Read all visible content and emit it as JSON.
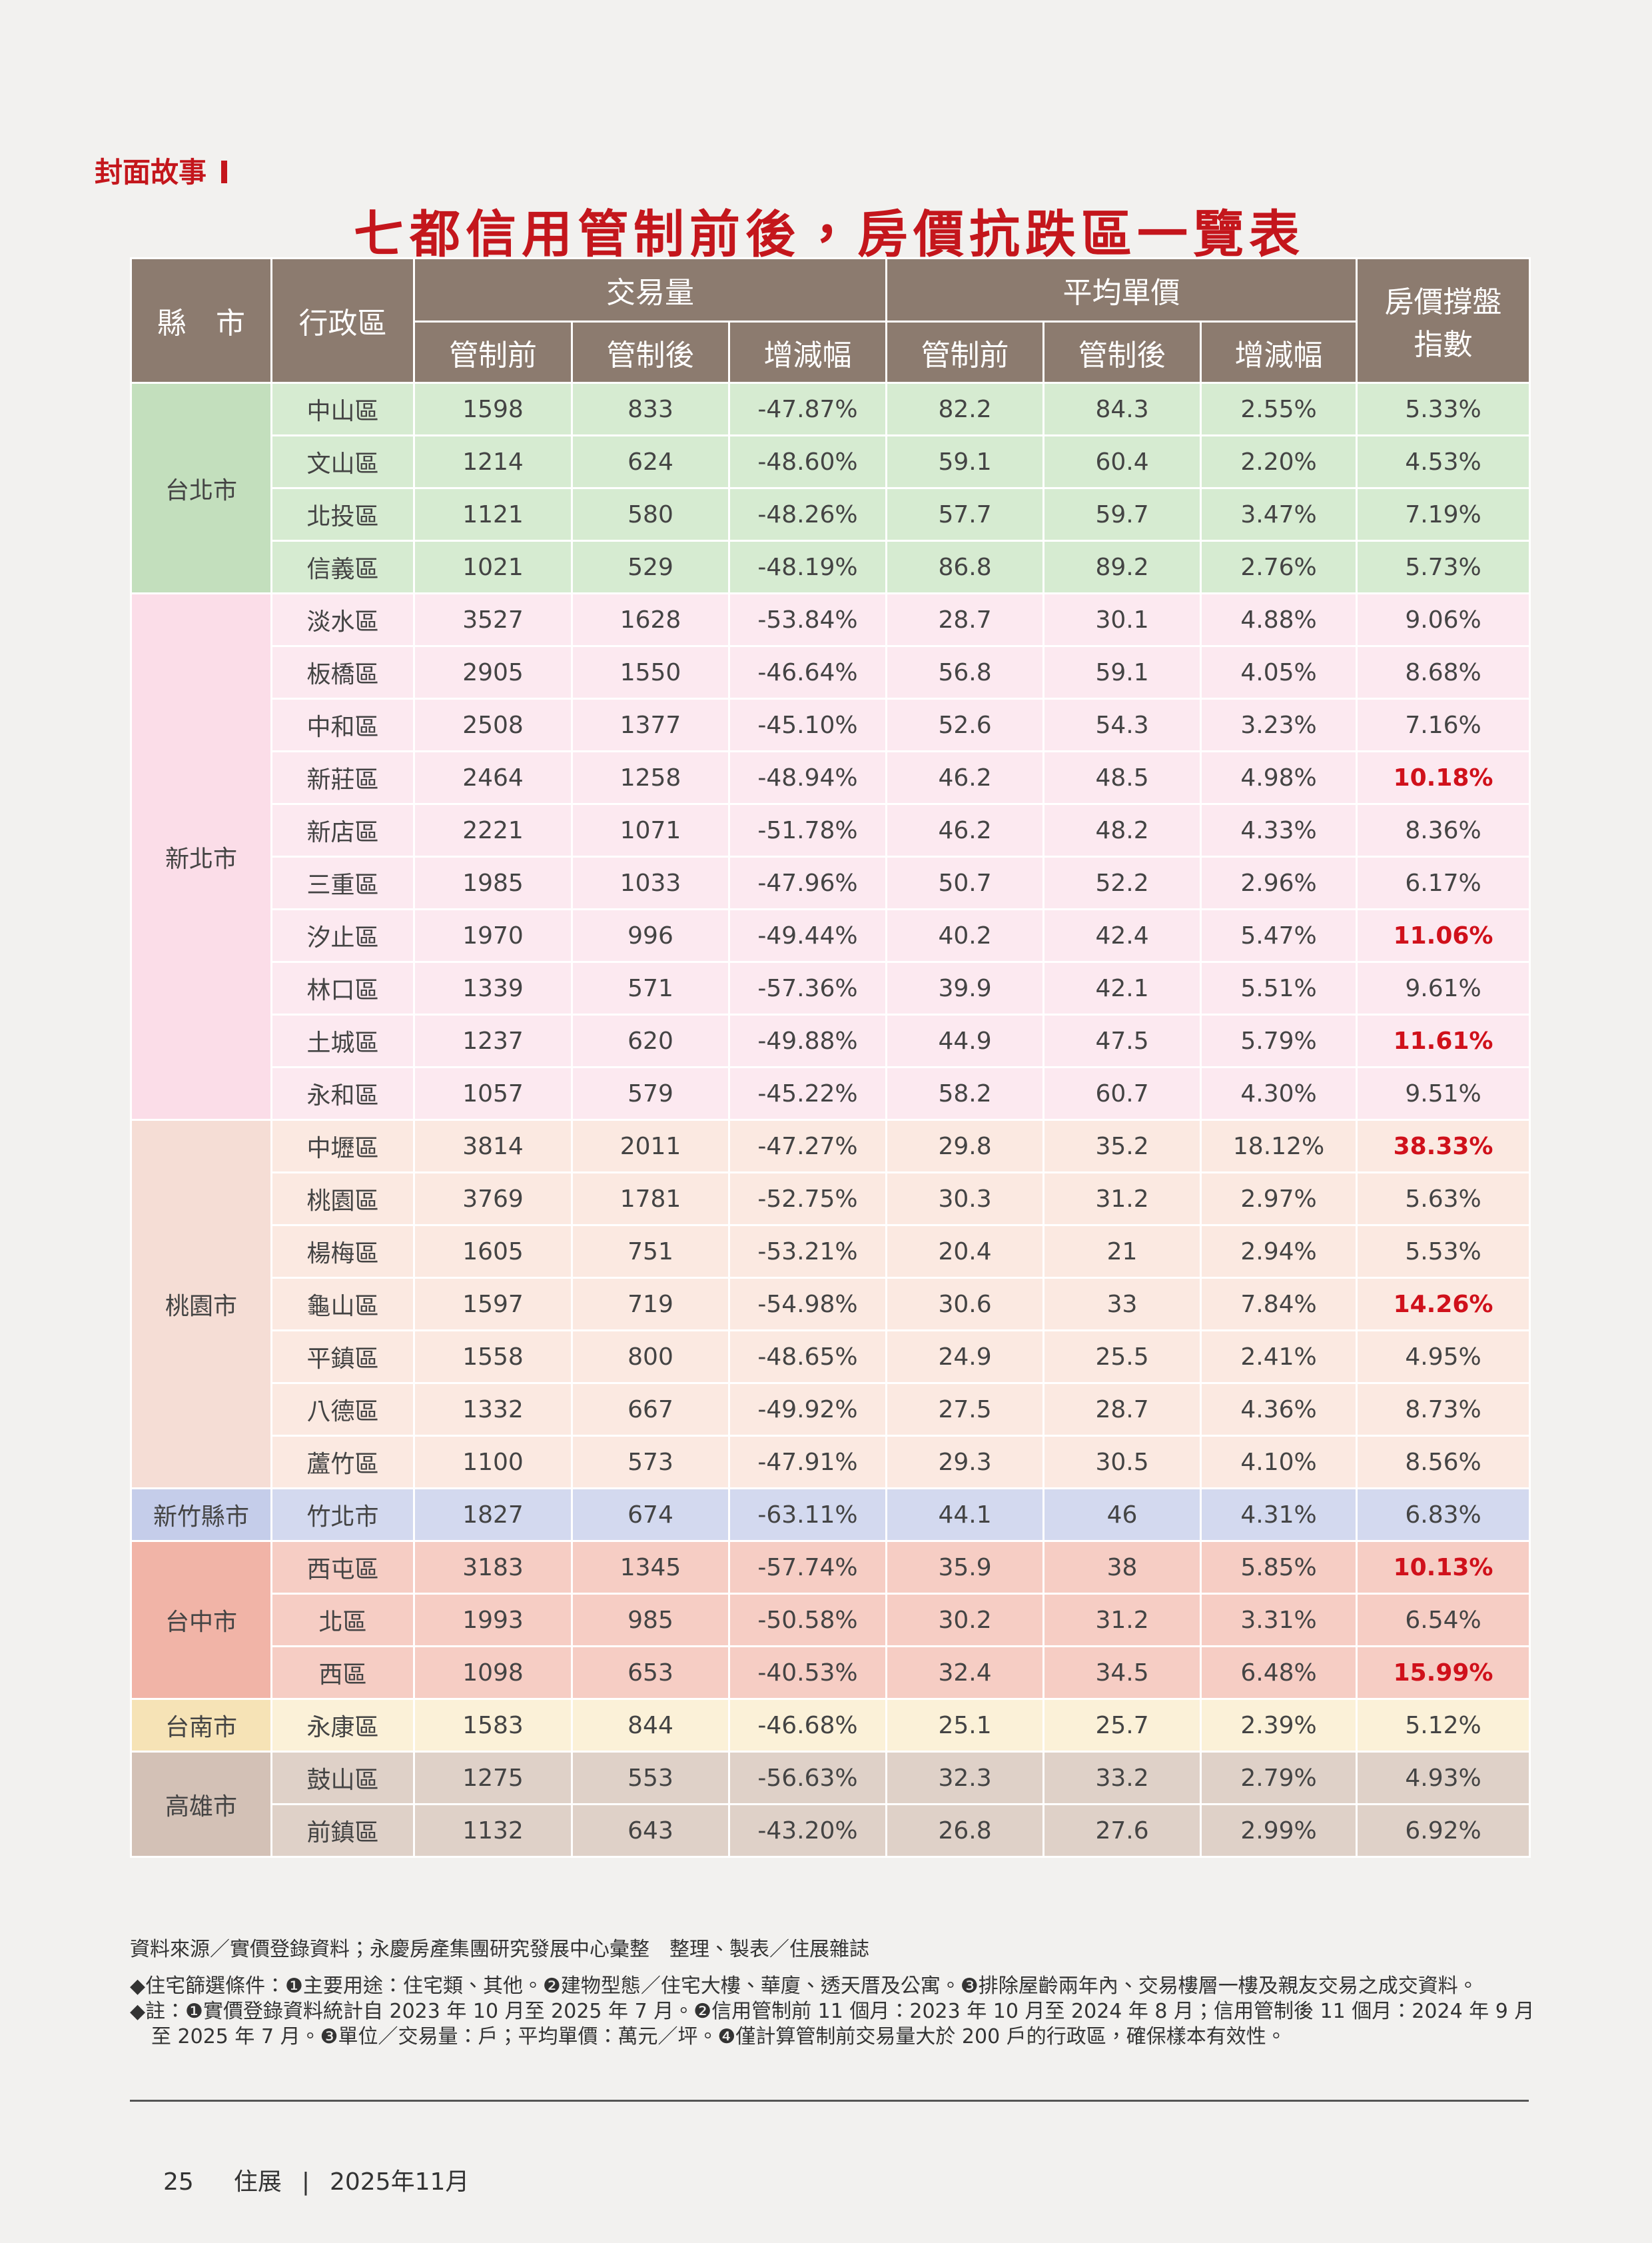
{
  "header": {
    "section": "封面故事",
    "title": "七都信用管制前後，房價抗跌區一覽表"
  },
  "table": {
    "columns": {
      "city": "縣　市",
      "district": "行政區",
      "volume": "交易量",
      "price": "平均單價",
      "index": "房價撐盤指數",
      "sub": [
        "管制前",
        "管制後",
        "增減幅",
        "管制前",
        "管制後",
        "增減幅"
      ]
    },
    "header_color": "#8c7b6f",
    "highlight_color": "#d0111b",
    "groups": [
      {
        "city": "台北市",
        "color": "#c3dfbd",
        "row_color": "#d6ebd1",
        "highlight_rows": [],
        "rows": [
          [
            "中山區",
            "1598",
            "833",
            "-47.87%",
            "82.2",
            "84.3",
            "2.55%",
            "5.33%"
          ],
          [
            "文山區",
            "1214",
            "624",
            "-48.60%",
            "59.1",
            "60.4",
            "2.20%",
            "4.53%"
          ],
          [
            "北投區",
            "1121",
            "580",
            "-48.26%",
            "57.7",
            "59.7",
            "3.47%",
            "7.19%"
          ],
          [
            "信義區",
            "1021",
            "529",
            "-48.19%",
            "86.8",
            "89.2",
            "2.76%",
            "5.73%"
          ]
        ]
      },
      {
        "city": "新北市",
        "color": "#fbdde8",
        "row_color": "#fce9f0",
        "highlight_rows": [
          3,
          6,
          8
        ],
        "rows": [
          [
            "淡水區",
            "3527",
            "1628",
            "-53.84%",
            "28.7",
            "30.1",
            "4.88%",
            "9.06%"
          ],
          [
            "板橋區",
            "2905",
            "1550",
            "-46.64%",
            "56.8",
            "59.1",
            "4.05%",
            "8.68%"
          ],
          [
            "中和區",
            "2508",
            "1377",
            "-45.10%",
            "52.6",
            "54.3",
            "3.23%",
            "7.16%"
          ],
          [
            "新莊區",
            "2464",
            "1258",
            "-48.94%",
            "46.2",
            "48.5",
            "4.98%",
            "10.18%"
          ],
          [
            "新店區",
            "2221",
            "1071",
            "-51.78%",
            "46.2",
            "48.2",
            "4.33%",
            "8.36%"
          ],
          [
            "三重區",
            "1985",
            "1033",
            "-47.96%",
            "50.7",
            "52.2",
            "2.96%",
            "6.17%"
          ],
          [
            "汐止區",
            "1970",
            "996",
            "-49.44%",
            "40.2",
            "42.4",
            "5.47%",
            "11.06%"
          ],
          [
            "林口區",
            "1339",
            "571",
            "-57.36%",
            "39.9",
            "42.1",
            "5.51%",
            "9.61%"
          ],
          [
            "土城區",
            "1237",
            "620",
            "-49.88%",
            "44.9",
            "47.5",
            "5.79%",
            "11.61%"
          ],
          [
            "永和區",
            "1057",
            "579",
            "-45.22%",
            "58.2",
            "60.7",
            "4.30%",
            "9.51%"
          ]
        ]
      },
      {
        "city": "桃園市",
        "color": "#f5ddd5",
        "row_color": "#fbe9e1",
        "highlight_rows": [
          0,
          3
        ],
        "rows": [
          [
            "中壢區",
            "3814",
            "2011",
            "-47.27%",
            "29.8",
            "35.2",
            "18.12%",
            "38.33%"
          ],
          [
            "桃園區",
            "3769",
            "1781",
            "-52.75%",
            "30.3",
            "31.2",
            "2.97%",
            "5.63%"
          ],
          [
            "楊梅區",
            "1605",
            "751",
            "-53.21%",
            "20.4",
            "21",
            "2.94%",
            "5.53%"
          ],
          [
            "龜山區",
            "1597",
            "719",
            "-54.98%",
            "30.6",
            "33",
            "7.84%",
            "14.26%"
          ],
          [
            "平鎮區",
            "1558",
            "800",
            "-48.65%",
            "24.9",
            "25.5",
            "2.41%",
            "4.95%"
          ],
          [
            "八德區",
            "1332",
            "667",
            "-49.92%",
            "27.5",
            "28.7",
            "4.36%",
            "8.73%"
          ],
          [
            "蘆竹區",
            "1100",
            "573",
            "-47.91%",
            "29.3",
            "30.5",
            "4.10%",
            "8.56%"
          ]
        ]
      },
      {
        "city": "新竹縣市",
        "color": "#c5cdea",
        "row_color": "#d3d9ef",
        "highlight_rows": [],
        "rows": [
          [
            "竹北市",
            "1827",
            "674",
            "-63.11%",
            "44.1",
            "46",
            "4.31%",
            "6.83%"
          ]
        ]
      },
      {
        "city": "台中市",
        "color": "#f1b4a7",
        "row_color": "#f6cdc4",
        "highlight_rows": [
          0,
          2
        ],
        "rows": [
          [
            "西屯區",
            "3183",
            "1345",
            "-57.74%",
            "35.9",
            "38",
            "5.85%",
            "10.13%"
          ],
          [
            "北區",
            "1993",
            "985",
            "-50.58%",
            "30.2",
            "31.2",
            "3.31%",
            "6.54%"
          ],
          [
            "西區",
            "1098",
            "653",
            "-40.53%",
            "32.4",
            "34.5",
            "6.48%",
            "15.99%"
          ]
        ]
      },
      {
        "city": "台南市",
        "color": "#f6e3b6",
        "row_color": "#fbf1d8",
        "highlight_rows": [],
        "rows": [
          [
            "永康區",
            "1583",
            "844",
            "-46.68%",
            "25.1",
            "25.7",
            "2.39%",
            "5.12%"
          ]
        ]
      },
      {
        "city": "高雄市",
        "color": "#d3c1b6",
        "row_color": "#dfd1c8",
        "highlight_rows": [],
        "rows": [
          [
            "鼓山區",
            "1275",
            "553",
            "-56.63%",
            "32.3",
            "33.2",
            "2.79%",
            "4.93%"
          ],
          [
            "前鎮區",
            "1132",
            "643",
            "-43.20%",
            "26.8",
            "27.6",
            "2.99%",
            "6.92%"
          ]
        ]
      }
    ]
  },
  "notes": {
    "source": "資料來源／實價登錄資料；永慶房產集團研究發展中心彙整　整理、製表／住展雜誌",
    "items": [
      "◆住宅篩選條件：❶主要用途：住宅類、其他。❷建物型態／住宅大樓、華廈、透天厝及公寓。❸排除屋齡兩年內、交易樓層一樓及親友交易之成交資料。",
      "◆註：❶實價登錄資料統計自 2023 年 10 月至 2025 年 7 月。❷信用管制前 11 個月：2023 年 10 月至 2024 年 8 月；信用管制後 11 個月：2024 年 9 月至 2025 年 7 月。❸單位／交易量：戶；平均單價：萬元／坪。❹僅計算管制前交易量大於 200 戶的行政區，確保樣本有效性。"
    ]
  },
  "footer": {
    "page": "25",
    "magazine": "住展",
    "issue": "2025年11月"
  }
}
